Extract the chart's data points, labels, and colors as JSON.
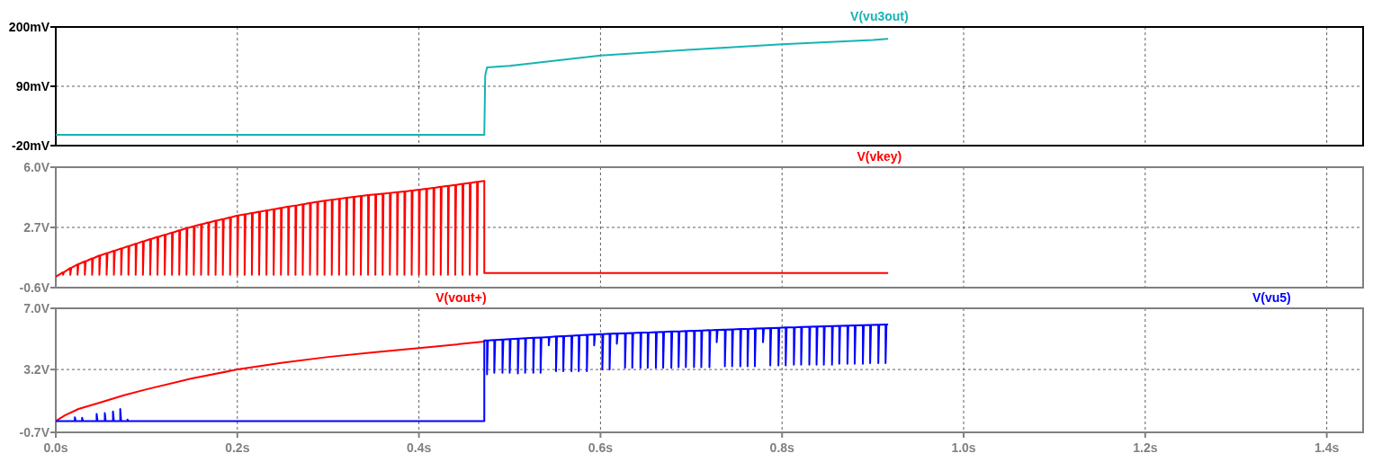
{
  "chart_data": [
    {
      "type": "line",
      "xlim": [
        0,
        1.44
      ],
      "xticks": [
        {
          "value": 0,
          "label": null
        },
        {
          "value": 0.2,
          "label": null
        },
        {
          "value": 0.4,
          "label": null
        },
        {
          "value": 0.6,
          "label": null
        },
        {
          "value": 0.8,
          "label": null
        },
        {
          "value": 1.0,
          "label": null
        },
        {
          "value": 1.2,
          "label": null
        },
        {
          "value": 1.4,
          "label": null
        }
      ],
      "ylim": [
        -20,
        200
      ],
      "yticks": [
        {
          "value": -20,
          "label": "-20mV"
        },
        {
          "value": 90,
          "label": "90mV"
        },
        {
          "value": 200,
          "label": "200mV"
        }
      ],
      "grid": true,
      "legend": "top",
      "tick_labels": "y",
      "series": [
        {
          "name": "V(vu3out)",
          "color": "#17b3b3",
          "x": [
            0,
            0.472,
            0.473,
            0.475,
            0.5,
            0.6,
            0.7,
            0.8,
            0.9,
            0.916
          ],
          "values": [
            0,
            0,
            110,
            125,
            128,
            147,
            158,
            168,
            176,
            178
          ]
        }
      ]
    },
    {
      "type": "line",
      "xlim": [
        0,
        1.44
      ],
      "xticks": [
        {
          "value": 0,
          "label": null
        },
        {
          "value": 0.2,
          "label": null
        },
        {
          "value": 0.4,
          "label": null
        },
        {
          "value": 0.6,
          "label": null
        },
        {
          "value": 0.8,
          "label": null
        },
        {
          "value": 1.0,
          "label": null
        },
        {
          "value": 1.2,
          "label": null
        },
        {
          "value": 1.4,
          "label": null
        }
      ],
      "ylim": [
        -0.6,
        6.0
      ],
      "yticks": [
        {
          "value": -0.6,
          "label": "-0.6V"
        },
        {
          "value": 2.7,
          "label": "2.7V"
        },
        {
          "value": 6.0,
          "label": "6.0V"
        }
      ],
      "grid": true,
      "legend": "top",
      "tick_labels": "y",
      "series": [
        {
          "name": "V(vkey)",
          "color": "#ff0000",
          "x": [
            0,
            0.008,
            0.008,
            0.009,
            0.016,
            0.016,
            0.017,
            0.024,
            0.024,
            0.025,
            0.032,
            0.032,
            0.033,
            0.04,
            0.04,
            0.041,
            0.048,
            0.048,
            0.049,
            0.056,
            0.056,
            0.057,
            0.064,
            0.064,
            0.065,
            0.072,
            0.072,
            0.073,
            0.08,
            0.08,
            0.081,
            0.088,
            0.088,
            0.089,
            0.096,
            0.096,
            0.097,
            0.104,
            0.104,
            0.105,
            0.112,
            0.112,
            0.113,
            0.12,
            0.12,
            0.121,
            0.128,
            0.128,
            0.129,
            0.136,
            0.136,
            0.137,
            0.144,
            0.144,
            0.145,
            0.152,
            0.152,
            0.153,
            0.16,
            0.16,
            0.161,
            0.168,
            0.168,
            0.169,
            0.176,
            0.176,
            0.177,
            0.184,
            0.184,
            0.185,
            0.192,
            0.192,
            0.193,
            0.2,
            0.2,
            0.201,
            0.208,
            0.208,
            0.209,
            0.216,
            0.216,
            0.217,
            0.224,
            0.224,
            0.225,
            0.232,
            0.232,
            0.233,
            0.24,
            0.24,
            0.241,
            0.248,
            0.248,
            0.249,
            0.256,
            0.256,
            0.257,
            0.264,
            0.264,
            0.265,
            0.272,
            0.272,
            0.273,
            0.28,
            0.28,
            0.281,
            0.288,
            0.288,
            0.289,
            0.296,
            0.296,
            0.297,
            0.304,
            0.304,
            0.305,
            0.312,
            0.312,
            0.313,
            0.32,
            0.32,
            0.321,
            0.328,
            0.328,
            0.329,
            0.336,
            0.336,
            0.337,
            0.344,
            0.344,
            0.345,
            0.352,
            0.352,
            0.353,
            0.36,
            0.36,
            0.361,
            0.368,
            0.368,
            0.369,
            0.376,
            0.376,
            0.377,
            0.384,
            0.384,
            0.385,
            0.392,
            0.392,
            0.393,
            0.4,
            0.4,
            0.401,
            0.408,
            0.408,
            0.409,
            0.416,
            0.416,
            0.417,
            0.424,
            0.424,
            0.425,
            0.432,
            0.432,
            0.433,
            0.44,
            0.44,
            0.441,
            0.448,
            0.448,
            0.449,
            0.456,
            0.456,
            0.457,
            0.464,
            0.464,
            0.465,
            0.472,
            0.472,
            0.916
          ],
          "values": [
            0,
            0.24,
            0.1,
            0.24,
            0.48,
            0.1,
            0.48,
            0.68,
            0.1,
            0.68,
            0.84,
            0.1,
            0.84,
            1.0,
            0.1,
            1.0,
            1.16,
            0.1,
            1.16,
            1.29,
            0.1,
            1.29,
            1.42,
            0.1,
            1.42,
            1.55,
            0.1,
            1.55,
            1.68,
            0.1,
            1.68,
            1.81,
            0.1,
            1.81,
            1.94,
            0.1,
            1.94,
            2.06,
            0.1,
            2.06,
            2.18,
            0.1,
            2.18,
            2.3,
            0.1,
            2.3,
            2.42,
            0.1,
            2.42,
            2.54,
            0.1,
            2.54,
            2.66,
            0.1,
            2.66,
            2.77,
            0.1,
            2.77,
            2.87,
            0.1,
            2.87,
            2.97,
            0.1,
            2.97,
            3.07,
            0.1,
            3.07,
            3.16,
            0.1,
            3.16,
            3.25,
            0.1,
            3.25,
            3.35,
            0.1,
            3.35,
            3.42,
            0.1,
            3.42,
            3.49,
            0.1,
            3.49,
            3.56,
            0.1,
            3.56,
            3.63,
            0.1,
            3.63,
            3.7,
            0.1,
            3.7,
            3.77,
            0.1,
            3.77,
            3.84,
            0.1,
            3.84,
            3.9,
            0.1,
            3.9,
            3.97,
            0.1,
            3.97,
            4.04,
            0.1,
            4.04,
            4.1,
            0.1,
            4.1,
            4.16,
            0.1,
            4.16,
            4.22,
            0.1,
            4.22,
            4.27,
            0.1,
            4.27,
            4.32,
            0.1,
            4.32,
            4.37,
            0.1,
            4.37,
            4.42,
            0.1,
            4.42,
            4.47,
            0.1,
            4.47,
            4.51,
            0.1,
            4.51,
            4.55,
            0.1,
            4.55,
            4.59,
            0.1,
            4.59,
            4.63,
            0.1,
            4.63,
            4.67,
            0.1,
            4.67,
            4.72,
            0.1,
            4.72,
            4.77,
            0.1,
            4.77,
            4.82,
            0.1,
            4.82,
            4.87,
            0.1,
            4.87,
            4.93,
            0.1,
            4.93,
            4.98,
            0.1,
            4.98,
            5.03,
            0.1,
            5.03,
            5.09,
            0.1,
            5.09,
            5.14,
            0.1,
            5.14,
            5.2,
            0.1,
            5.2,
            5.25,
            0.2,
            0.2
          ]
        }
      ]
    },
    {
      "type": "line",
      "xlim": [
        0,
        1.44
      ],
      "xticks": [
        {
          "value": 0,
          "label": "0.0s"
        },
        {
          "value": 0.2,
          "label": "0.2s"
        },
        {
          "value": 0.4,
          "label": "0.4s"
        },
        {
          "value": 0.6,
          "label": "0.6s"
        },
        {
          "value": 0.8,
          "label": "0.8s"
        },
        {
          "value": 1.0,
          "label": "1.0s"
        },
        {
          "value": 1.2,
          "label": "1.2s"
        },
        {
          "value": 1.4,
          "label": "1.4s"
        }
      ],
      "ylim": [
        -0.7,
        7.0
      ],
      "yticks": [
        {
          "value": -0.7,
          "label": "-0.7V"
        },
        {
          "value": 3.2,
          "label": "3.2V"
        },
        {
          "value": 7.0,
          "label": "7.0V"
        }
      ],
      "grid": true,
      "legend": "top",
      "series": [
        {
          "name": "V(vout+)",
          "color": "#ff0000",
          "x": [
            0,
            0.01,
            0.025,
            0.05,
            0.075,
            0.1,
            0.15,
            0.2,
            0.25,
            0.3,
            0.35,
            0.4,
            0.472
          ],
          "values": [
            0,
            0.35,
            0.75,
            1.17,
            1.6,
            1.97,
            2.65,
            3.2,
            3.62,
            3.98,
            4.27,
            4.53,
            4.93
          ]
        },
        {
          "name": "V(vu5)",
          "color": "#0000ff",
          "x": [
            0,
            0.021,
            0.021,
            0.022,
            0.029,
            0.029,
            0.03,
            0.045,
            0.045,
            0.046,
            0.054,
            0.054,
            0.055,
            0.063,
            0.063,
            0.064,
            0.071,
            0.071,
            0.072,
            0.079,
            0.079,
            0.08,
            0.472,
            0.472,
            0.475,
            0.475,
            0.476,
            0.483,
            0.483,
            0.484,
            0.492,
            0.492,
            0.493,
            0.5,
            0.5,
            0.501,
            0.509,
            0.509,
            0.51,
            0.517,
            0.517,
            0.518,
            0.526,
            0.526,
            0.527,
            0.534,
            0.534,
            0.535,
            0.543,
            0.543,
            0.544,
            0.551,
            0.551,
            0.552,
            0.559,
            0.559,
            0.56,
            0.568,
            0.568,
            0.569,
            0.576,
            0.576,
            0.577,
            0.585,
            0.585,
            0.586,
            0.593,
            0.593,
            0.594,
            0.602,
            0.602,
            0.603,
            0.61,
            0.61,
            0.611,
            0.618,
            0.618,
            0.619,
            0.627,
            0.627,
            0.628,
            0.635,
            0.635,
            0.636,
            0.644,
            0.644,
            0.645,
            0.652,
            0.652,
            0.653,
            0.661,
            0.661,
            0.662,
            0.669,
            0.669,
            0.67,
            0.678,
            0.678,
            0.679,
            0.686,
            0.686,
            0.687,
            0.694,
            0.694,
            0.695,
            0.703,
            0.703,
            0.704,
            0.711,
            0.711,
            0.712,
            0.72,
            0.72,
            0.721,
            0.728,
            0.728,
            0.729,
            0.737,
            0.737,
            0.738,
            0.745,
            0.745,
            0.746,
            0.754,
            0.754,
            0.755,
            0.762,
            0.762,
            0.763,
            0.77,
            0.77,
            0.771,
            0.779,
            0.779,
            0.78,
            0.787,
            0.787,
            0.788,
            0.796,
            0.796,
            0.797,
            0.804,
            0.804,
            0.805,
            0.813,
            0.813,
            0.814,
            0.821,
            0.821,
            0.822,
            0.83,
            0.83,
            0.831,
            0.838,
            0.838,
            0.839,
            0.846,
            0.846,
            0.847,
            0.855,
            0.855,
            0.856,
            0.863,
            0.863,
            0.864,
            0.872,
            0.872,
            0.873,
            0.88,
            0.88,
            0.881,
            0.889,
            0.889,
            0.89,
            0.897,
            0.897,
            0.898,
            0.906,
            0.906,
            0.907,
            0.914,
            0.914,
            0.915,
            0.916
          ],
          "values": [
            0,
            0,
            0.24,
            0,
            0,
            0.2,
            0,
            0,
            0.45,
            0,
            0,
            0.5,
            0,
            0,
            0.6,
            0,
            0,
            0.75,
            0,
            0,
            0.1,
            0,
            0,
            5.0,
            5.01,
            2.9,
            5.01,
            5.03,
            3.0,
            5.03,
            5.06,
            3.0,
            5.06,
            5.09,
            3.0,
            5.09,
            5.12,
            2.95,
            5.12,
            5.14,
            3.0,
            5.14,
            5.17,
            3.0,
            5.17,
            5.19,
            3.0,
            5.19,
            5.22,
            4.7,
            5.22,
            5.25,
            3.1,
            5.25,
            5.27,
            3.1,
            5.27,
            5.3,
            3.1,
            5.3,
            5.33,
            3.1,
            5.33,
            5.35,
            3.1,
            5.35,
            5.38,
            4.7,
            5.38,
            5.4,
            3.2,
            5.4,
            5.42,
            3.2,
            5.42,
            5.44,
            4.8,
            5.44,
            5.45,
            3.3,
            5.45,
            5.47,
            3.3,
            5.47,
            5.49,
            3.3,
            5.49,
            5.5,
            3.3,
            5.5,
            5.52,
            3.3,
            5.52,
            5.54,
            3.3,
            5.54,
            5.56,
            3.3,
            5.56,
            5.57,
            3.35,
            5.57,
            5.59,
            3.35,
            5.59,
            5.61,
            3.35,
            5.61,
            5.62,
            3.35,
            5.62,
            5.64,
            3.35,
            5.64,
            5.66,
            4.9,
            5.66,
            5.67,
            3.4,
            5.67,
            5.69,
            3.4,
            5.69,
            5.71,
            3.4,
            5.71,
            5.72,
            3.4,
            5.72,
            5.74,
            3.4,
            5.74,
            5.76,
            4.9,
            5.76,
            5.77,
            3.45,
            5.77,
            5.79,
            3.45,
            5.79,
            5.81,
            3.45,
            5.81,
            5.82,
            3.5,
            5.82,
            5.84,
            3.5,
            5.84,
            5.85,
            3.5,
            5.85,
            5.87,
            3.5,
            5.87,
            5.88,
            3.5,
            5.88,
            5.9,
            3.5,
            5.9,
            5.91,
            3.55,
            5.91,
            5.93,
            3.55,
            5.93,
            5.94,
            3.55,
            5.94,
            5.95,
            3.55,
            5.95,
            5.97,
            3.6,
            5.97,
            5.98,
            3.6,
            5.98,
            6.0,
            3.6,
            6.0,
            6.0
          ]
        }
      ]
    }
  ]
}
